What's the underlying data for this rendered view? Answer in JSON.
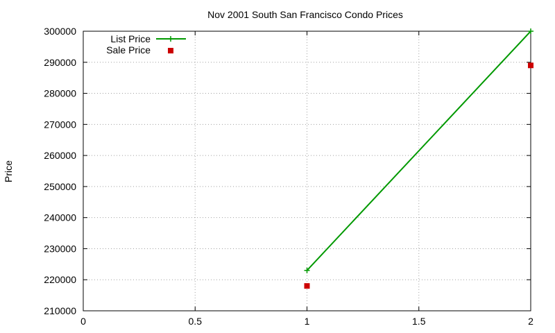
{
  "chart_data": {
    "type": "line",
    "title": "Nov 2001 South San Francisco Condo Prices",
    "xlabel": "",
    "ylabel": "Price",
    "xlim": [
      0,
      2
    ],
    "ylim": [
      210000,
      300000
    ],
    "x_ticks": [
      "0",
      "0.5",
      "1",
      "1.5",
      "2"
    ],
    "x_tick_values": [
      0,
      0.5,
      1,
      1.5,
      2
    ],
    "y_ticks": [
      "210000",
      "220000",
      "230000",
      "240000",
      "250000",
      "260000",
      "270000",
      "280000",
      "290000",
      "300000"
    ],
    "y_tick_values": [
      210000,
      220000,
      230000,
      240000,
      250000,
      260000,
      270000,
      280000,
      290000,
      300000
    ],
    "grid": true,
    "legend_position": "top-left",
    "series": [
      {
        "name": "List Price",
        "style": "linespoints",
        "marker": "plus",
        "color": "#009900",
        "x": [
          1,
          2
        ],
        "y": [
          223000,
          300000
        ]
      },
      {
        "name": "Sale Price",
        "style": "points",
        "marker": "square",
        "color": "#cc0000",
        "x": [
          1,
          2
        ],
        "y": [
          218000,
          289000
        ]
      }
    ]
  }
}
